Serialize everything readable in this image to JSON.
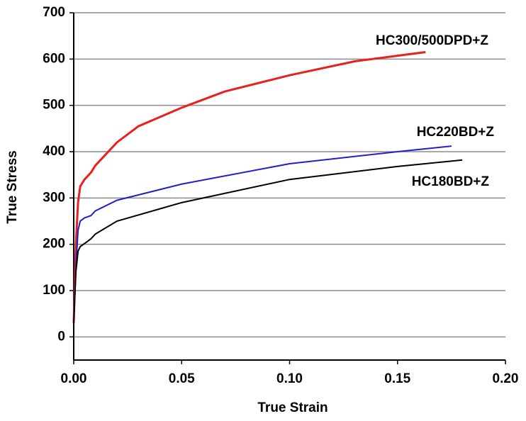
{
  "chart_data": {
    "type": "line",
    "xlabel": "True Strain",
    "ylabel": "True Stress",
    "xlim": [
      0,
      0.2
    ],
    "ylim": [
      -50,
      700
    ],
    "xticks": [
      {
        "value": 0,
        "label": "0.00"
      },
      {
        "value": 0.05,
        "label": "0.05"
      },
      {
        "value": 0.1,
        "label": "0.10"
      },
      {
        "value": 0.15,
        "label": "0.15"
      },
      {
        "value": 0.2,
        "label": "0.20"
      }
    ],
    "yticks": [
      0,
      100,
      200,
      300,
      400,
      500,
      600,
      700
    ],
    "grid": true,
    "series": [
      {
        "name": "HC300/500DPD+Z",
        "color": "#e8201e",
        "x": [
          0,
          0.001,
          0.002,
          0.003,
          0.005,
          0.008,
          0.01,
          0.02,
          0.03,
          0.05,
          0.07,
          0.1,
          0.13,
          0.163
        ],
        "values": [
          30,
          200,
          290,
          325,
          340,
          355,
          370,
          420,
          455,
          495,
          530,
          565,
          595,
          615
        ]
      },
      {
        "name": "HC220BD+Z",
        "color": "#1f1fd0",
        "x": [
          0,
          0.001,
          0.002,
          0.003,
          0.005,
          0.008,
          0.01,
          0.02,
          0.05,
          0.1,
          0.15,
          0.175
        ],
        "values": [
          30,
          150,
          230,
          250,
          257,
          262,
          272,
          295,
          330,
          374,
          400,
          412
        ]
      },
      {
        "name": "HC180BD+Z",
        "color": "#000000",
        "x": [
          0,
          0.001,
          0.002,
          0.003,
          0.006,
          0.008,
          0.01,
          0.02,
          0.05,
          0.1,
          0.15,
          0.18
        ],
        "values": [
          30,
          140,
          185,
          195,
          205,
          212,
          222,
          250,
          290,
          340,
          368,
          382
        ]
      }
    ]
  }
}
